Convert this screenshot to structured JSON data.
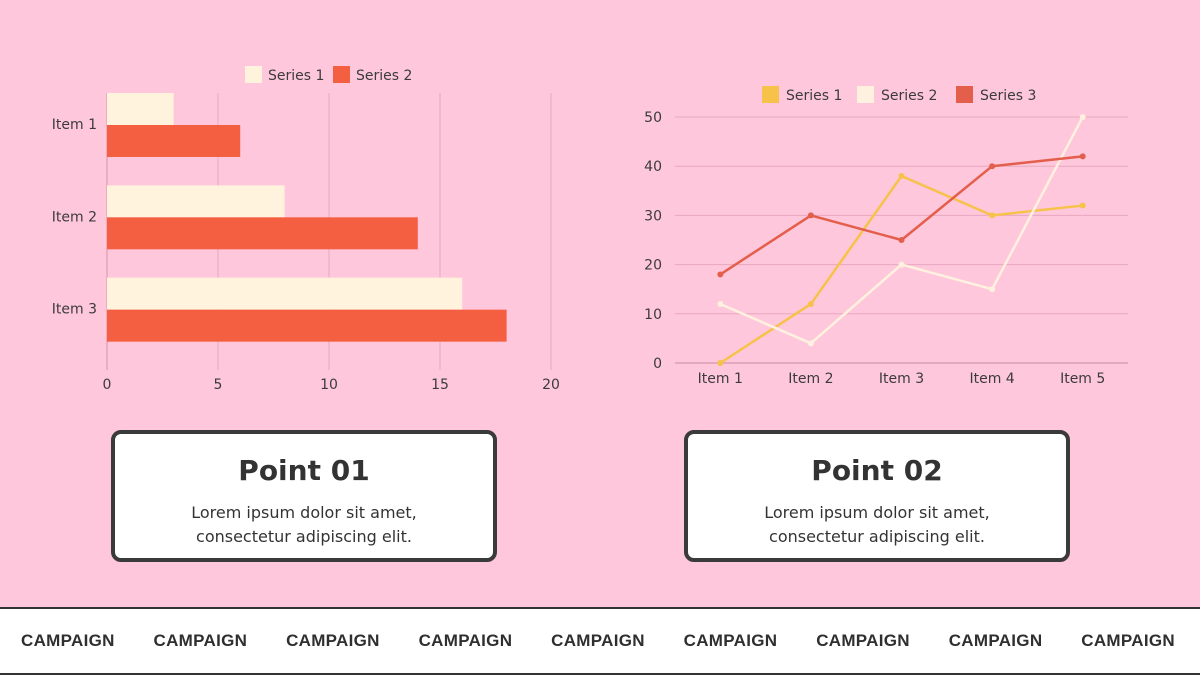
{
  "colors": {
    "background": "#FFC7DB",
    "cream": "#FFF3DE",
    "coral": "#F45F41",
    "yellow": "#F6C24A",
    "line_red": "#E35F4B",
    "line_cream": "#FFF1E0"
  },
  "chart_data": [
    {
      "type": "bar",
      "orientation": "horizontal",
      "categories": [
        "Item 1",
        "Item 2",
        "Item 3"
      ],
      "series": [
        {
          "name": "Series 1",
          "values": [
            3,
            8,
            16
          ]
        },
        {
          "name": "Series 2",
          "values": [
            6,
            14,
            18
          ]
        }
      ],
      "x_ticks": [
        0,
        5,
        10,
        15,
        20
      ],
      "xlim": [
        0,
        20
      ],
      "grid": "vertical",
      "legend": "top"
    },
    {
      "type": "line",
      "categories": [
        "Item 1",
        "Item 2",
        "Item 3",
        "Item 4",
        "Item 5"
      ],
      "series": [
        {
          "name": "Series 1",
          "values": [
            0,
            12,
            38,
            30,
            32
          ]
        },
        {
          "name": "Series 2",
          "values": [
            12,
            4,
            20,
            15,
            50
          ]
        },
        {
          "name": "Series 3",
          "values": [
            18,
            30,
            25,
            40,
            42
          ]
        }
      ],
      "y_ticks": [
        0,
        10,
        20,
        30,
        40,
        50
      ],
      "ylim": [
        0,
        50
      ],
      "grid": "horizontal",
      "legend": "top"
    }
  ],
  "cards": [
    {
      "title": "Point 01",
      "text": "Lorem ipsum dolor sit amet, consectetur adipiscing elit."
    },
    {
      "title": "Point 02",
      "text": "Lorem ipsum dolor sit amet, consectetur adipiscing elit."
    }
  ],
  "footer_strip": [
    "CAMPAIGN",
    "CAMPAIGN",
    "CAMPAIGN",
    "CAMPAIGN",
    "CAMPAIGN",
    "CAMPAIGN",
    "CAMPAIGN",
    "CAMPAIGN",
    "CAMPAIGN"
  ]
}
